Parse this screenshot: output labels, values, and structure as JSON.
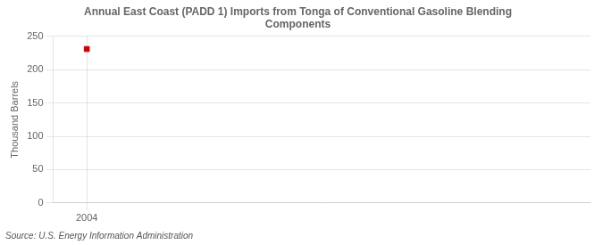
{
  "chart_data": {
    "type": "scatter",
    "title": "Annual East Coast (PADD 1) Imports from Tonga of Conventional Gasoline Blending\nComponents",
    "ylabel": "Thousand Barrels",
    "source": "Source: U.S. Energy Information Administration",
    "x": [
      2004
    ],
    "values": [
      231
    ],
    "color": "#cc0000",
    "marker": "square",
    "xlim": [
      2003.3,
      2014.5
    ],
    "xticks": [
      2004
    ],
    "ylim": [
      0,
      250
    ],
    "yticks": [
      0,
      50,
      100,
      150,
      200,
      250
    ],
    "grid": true
  }
}
